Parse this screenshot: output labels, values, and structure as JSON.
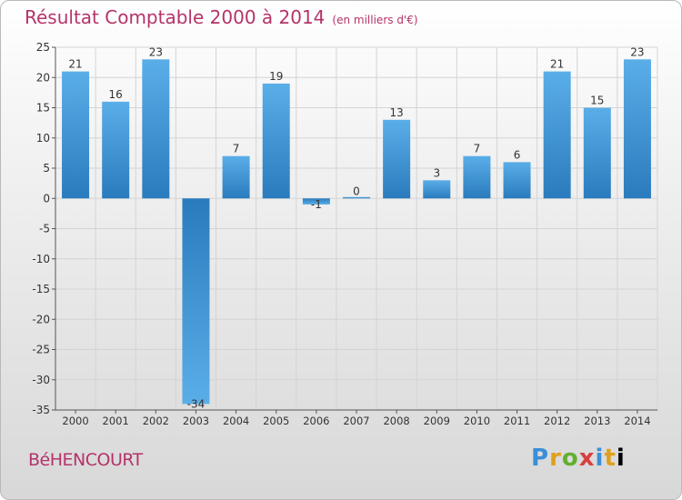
{
  "header": {
    "title": "Résultat Comptable 2000 à 2014",
    "subtitle": "(en milliers d'€)"
  },
  "footer": {
    "place": "BéHENCOURT",
    "logo": [
      "P",
      "r",
      "o",
      "x",
      "i",
      "t",
      "i"
    ]
  },
  "colors": {
    "title": "#b5336a",
    "bar_dark": "#2a7bbd",
    "bar_light": "#5aaee8",
    "grid": "#d4d4d4"
  },
  "chart_data": {
    "type": "bar",
    "categories": [
      "2000",
      "2001",
      "2002",
      "2003",
      "2004",
      "2005",
      "2006",
      "2007",
      "2008",
      "2009",
      "2010",
      "2011",
      "2012",
      "2013",
      "2014"
    ],
    "values": [
      21,
      16,
      23,
      -34,
      7,
      19,
      -1,
      0,
      13,
      3,
      7,
      6,
      21,
      15,
      23
    ],
    "labels": [
      "21",
      "16",
      "23",
      "-34",
      "7",
      "19",
      "-1",
      "0",
      "13",
      "3",
      "7",
      "6",
      "21",
      "15",
      "23"
    ],
    "title": "Résultat Comptable 2000 à 2014",
    "subtitle": "(en milliers d'€)",
    "xlabel": "",
    "ylabel": "",
    "ylim": [
      -35,
      25
    ],
    "yticks": [
      25,
      20,
      15,
      10,
      5,
      0,
      -5,
      -10,
      -15,
      -20,
      -25,
      -30,
      -35
    ],
    "grid": true
  }
}
